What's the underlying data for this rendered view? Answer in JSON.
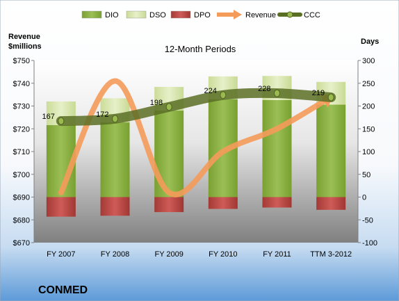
{
  "chart_data": {
    "type": "bar",
    "title": "12-Month Periods",
    "company": "CONMED",
    "left_axis_title": [
      "Revenue",
      "$millions"
    ],
    "right_axis_title": "Days",
    "categories": [
      "FY 2007",
      "FY 2008",
      "FY 2009",
      "FY 2010",
      "FY 2011",
      "TTM 3-2012"
    ],
    "left_axis": {
      "min": 670,
      "max": 750,
      "step": 10,
      "ticks": [
        "$670",
        "$680",
        "$690",
        "$700",
        "$710",
        "$720",
        "$730",
        "$740",
        "$750"
      ]
    },
    "right_axis": {
      "min": -100,
      "max": 300,
      "step": 50,
      "ticks": [
        "-100",
        "-50",
        "0",
        "50",
        "100",
        "150",
        "200",
        "250",
        "300"
      ]
    },
    "series": [
      {
        "name": "DIO",
        "type": "stacked-bar",
        "axis": "right",
        "color": "#8cb043",
        "values": [
          158,
          164,
          190,
          215,
          213,
          203
        ]
      },
      {
        "name": "DSO",
        "type": "stacked-bar",
        "axis": "right",
        "color": "#d9e6b0",
        "values": [
          52,
          53,
          52,
          50,
          53,
          50
        ]
      },
      {
        "name": "DPO",
        "type": "stacked-bar-negative",
        "axis": "right",
        "color": "#c0504d",
        "values": [
          -43,
          -41,
          -33,
          -26,
          -23,
          -28
        ]
      },
      {
        "name": "Revenue",
        "type": "line",
        "axis": "left",
        "color": "#f59b5a",
        "values": [
          692,
          741,
          692,
          710,
          720,
          734
        ]
      },
      {
        "name": "CCC",
        "type": "line",
        "axis": "right",
        "color": "#5a6e24",
        "values": [
          167,
          172,
          198,
          224,
          228,
          219
        ]
      }
    ],
    "data_labels": [
      "167",
      "172",
      "198",
      "224",
      "228",
      "219"
    ],
    "legend_position": "top",
    "grid": false
  }
}
